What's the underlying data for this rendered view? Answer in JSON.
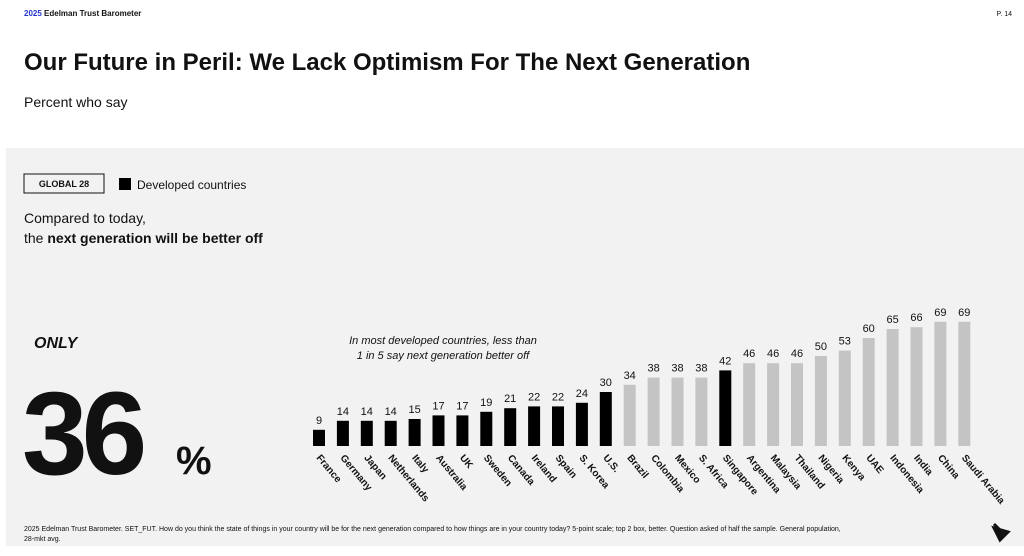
{
  "header": {
    "year": "2025",
    "brand": "Edelman Trust Barometer",
    "page": "P. 14"
  },
  "title": "Our Future in Peril: We Lack Optimism For The Next Generation",
  "subtitle": "Percent who say",
  "badge": "GLOBAL 28",
  "question": {
    "line1": "Compared to today,",
    "line2_lead": "the",
    "line2_bold": "next generation will be better off"
  },
  "headline": {
    "prefix": "ONLY",
    "value": "36",
    "unit": "%"
  },
  "chart_data": {
    "type": "bar",
    "categories": [
      "France",
      "Germany",
      "Japan",
      "Netherlands",
      "Italy",
      "Australia",
      "UK",
      "Sweden",
      "Canada",
      "Ireland",
      "Spain",
      "S. Korea",
      "U.S.",
      "Brazil",
      "Colombia",
      "Mexico",
      "S. Africa",
      "Singapore",
      "Argentina",
      "Malaysia",
      "Thailand",
      "Nigeria",
      "Kenya",
      "UAE",
      "Indonesia",
      "India",
      "China",
      "Saudi Arabia"
    ],
    "values": [
      9,
      14,
      14,
      14,
      15,
      17,
      17,
      19,
      21,
      22,
      22,
      24,
      30,
      34,
      38,
      38,
      38,
      42,
      46,
      46,
      46,
      50,
      53,
      60,
      65,
      66,
      69,
      69
    ],
    "colors": [
      "#000000",
      "#000000",
      "#000000",
      "#000000",
      "#000000",
      "#000000",
      "#000000",
      "#000000",
      "#000000",
      "#000000",
      "#000000",
      "#000000",
      "#000000",
      "#c4c4c4",
      "#c4c4c4",
      "#c4c4c4",
      "#c4c4c4",
      "#000000",
      "#c4c4c4",
      "#c4c4c4",
      "#c4c4c4",
      "#c4c4c4",
      "#c4c4c4",
      "#c4c4c4",
      "#c4c4c4",
      "#c4c4c4",
      "#c4c4c4",
      "#c4c4c4"
    ],
    "legend": {
      "name": "Developed countries",
      "color": "#000000"
    },
    "annotation": {
      "line1": "In most developed countries, less than",
      "line2": "1 in 5 say next generation better off"
    }
  },
  "footnote": {
    "line1": "2025 Edelman Trust Barometer. SET_FUT. How do you think the state of things in your country will be for the next generation compared to how things are in your country today? 5-point scale; top 2 box, better. Question asked of half the sample. General population,",
    "line2": "28-mkt avg."
  }
}
